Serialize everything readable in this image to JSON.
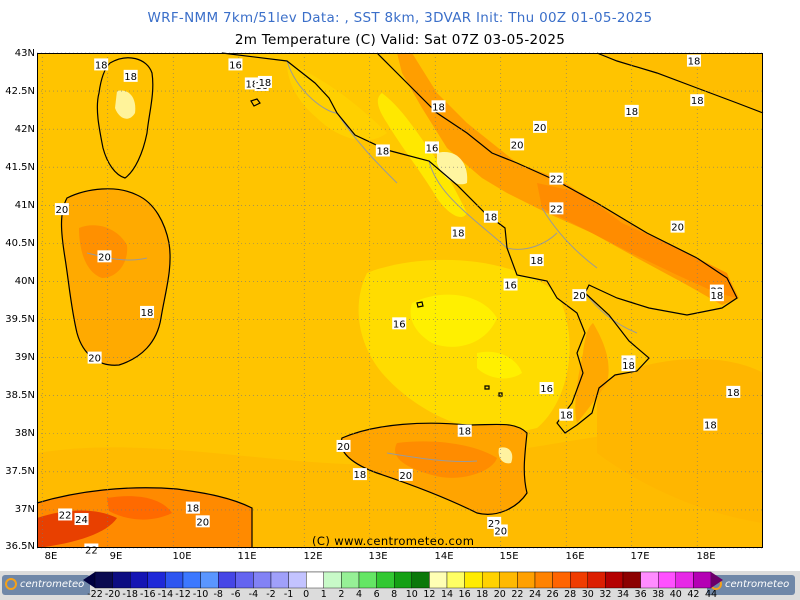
{
  "header": {
    "title_line1": "WRF-NMM 7km/51lev   Data: , SST 8km, 3DVAR   Init: Thu 00Z 01-05-2025",
    "title_line2": "2m Temperature (C)  Valid: Sat 07Z 03-05-2025"
  },
  "axes": {
    "latitudes": [
      "43N",
      "42.5N",
      "42N",
      "41.5N",
      "41N",
      "40.5N",
      "40N",
      "39.5N",
      "39N",
      "38.5N",
      "38N",
      "37.5N",
      "37N",
      "36.5N"
    ],
    "longitudes": [
      "8E",
      "9E",
      "10E",
      "11E",
      "12E",
      "13E",
      "14E",
      "15E",
      "16E",
      "17E",
      "18E"
    ]
  },
  "map_labels": [
    {
      "text": "18",
      "lon": 8.9,
      "lat": 42.85
    },
    {
      "text": "18",
      "lon": 9.35,
      "lat": 42.7
    },
    {
      "text": "16",
      "lon": 10.95,
      "lat": 42.85
    },
    {
      "text": "18",
      "lon": 11.2,
      "lat": 42.6
    },
    {
      "text": "16",
      "lon": 11.35,
      "lat": 42.58
    },
    {
      "text": "18",
      "lon": 11.4,
      "lat": 42.62
    },
    {
      "text": "18",
      "lon": 17.95,
      "lat": 42.9
    },
    {
      "text": "18",
      "lon": 18.0,
      "lat": 42.38
    },
    {
      "text": "18",
      "lon": 14.05,
      "lat": 42.3
    },
    {
      "text": "18",
      "lon": 17.0,
      "lat": 42.24
    },
    {
      "text": "20",
      "lon": 15.6,
      "lat": 42.03
    },
    {
      "text": "16",
      "lon": 13.95,
      "lat": 41.76
    },
    {
      "text": "20",
      "lon": 15.25,
      "lat": 41.8
    },
    {
      "text": "18",
      "lon": 13.2,
      "lat": 41.72
    },
    {
      "text": "22",
      "lon": 15.85,
      "lat": 41.35
    },
    {
      "text": "20",
      "lon": 8.3,
      "lat": 40.95
    },
    {
      "text": "22",
      "lon": 15.85,
      "lat": 40.96
    },
    {
      "text": "18",
      "lon": 14.85,
      "lat": 40.85
    },
    {
      "text": "20",
      "lon": 17.7,
      "lat": 40.72
    },
    {
      "text": "18",
      "lon": 14.35,
      "lat": 40.64
    },
    {
      "text": "20",
      "lon": 8.95,
      "lat": 40.33
    },
    {
      "text": "18",
      "lon": 15.55,
      "lat": 40.28
    },
    {
      "text": "16",
      "lon": 15.15,
      "lat": 39.96
    },
    {
      "text": "22",
      "lon": 18.3,
      "lat": 39.88
    },
    {
      "text": "18",
      "lon": 18.3,
      "lat": 39.82
    },
    {
      "text": "20",
      "lon": 16.2,
      "lat": 39.82
    },
    {
      "text": "18",
      "lon": 9.6,
      "lat": 39.6
    },
    {
      "text": "16",
      "lon": 13.45,
      "lat": 39.45
    },
    {
      "text": "20",
      "lon": 8.8,
      "lat": 39.0
    },
    {
      "text": "20",
      "lon": 16.95,
      "lat": 38.95
    },
    {
      "text": "18",
      "lon": 16.95,
      "lat": 38.9
    },
    {
      "text": "16",
      "lon": 15.7,
      "lat": 38.6
    },
    {
      "text": "18",
      "lon": 18.55,
      "lat": 38.55
    },
    {
      "text": "18",
      "lon": 16.0,
      "lat": 38.25
    },
    {
      "text": "18",
      "lon": 18.2,
      "lat": 38.12
    },
    {
      "text": "18",
      "lon": 14.45,
      "lat": 38.04
    },
    {
      "text": "20",
      "lon": 12.6,
      "lat": 37.84
    },
    {
      "text": "18",
      "lon": 12.85,
      "lat": 37.47
    },
    {
      "text": "20",
      "lon": 13.55,
      "lat": 37.46
    },
    {
      "text": "18",
      "lon": 10.3,
      "lat": 37.03
    },
    {
      "text": "22",
      "lon": 8.35,
      "lat": 36.94
    },
    {
      "text": "24",
      "lon": 8.6,
      "lat": 36.88
    },
    {
      "text": "20",
      "lon": 10.45,
      "lat": 36.85
    },
    {
      "text": "22",
      "lon": 14.9,
      "lat": 36.83
    },
    {
      "text": "20",
      "lon": 15.0,
      "lat": 36.73
    },
    {
      "text": "22",
      "lon": 8.75,
      "lat": 36.48
    }
  ],
  "copyright": "(C) www.centrometeo.com",
  "logo_text": "centrometeo",
  "legend": {
    "labels": [
      "-22",
      "-20",
      "-18",
      "-16",
      "-14",
      "-12",
      "-10",
      "-8",
      "-6",
      "-4",
      "-2",
      "-1",
      "0",
      "1",
      "2",
      "4",
      "6",
      "8",
      "10",
      "12",
      "14",
      "16",
      "18",
      "20",
      "22",
      "24",
      "26",
      "28",
      "30",
      "32",
      "34",
      "36",
      "38",
      "40",
      "42",
      "44"
    ],
    "colors": [
      "#0a0a50",
      "#0d0d82",
      "#1414b4",
      "#1e28d8",
      "#2d55f0",
      "#3c78ff",
      "#5a96ff",
      "#4646e6",
      "#6464f0",
      "#8282f5",
      "#a0a0fa",
      "#c3c3ff",
      "#ffffff",
      "#c8fac8",
      "#96f096",
      "#64e664",
      "#32c832",
      "#14a014",
      "#0a780a",
      "#ffffb4",
      "#ffff64",
      "#ffeb00",
      "#ffd200",
      "#ffb900",
      "#ffa000",
      "#ff8200",
      "#ff6400",
      "#f03c00",
      "#dc1e00",
      "#b40000",
      "#8c0000",
      "#ff8cff",
      "#ff50ff",
      "#e628e6",
      "#b400b4"
    ]
  },
  "palette": {
    "t16": "#fff000",
    "t17": "#ffe600",
    "t18": "#ffd200",
    "t19": "#ffc600",
    "t20": "#ffb400",
    "t22": "#ff9800",
    "t24": "#ff7800",
    "t26": "#f04a00",
    "coast": "#000000",
    "border": "#9a9a9a"
  }
}
